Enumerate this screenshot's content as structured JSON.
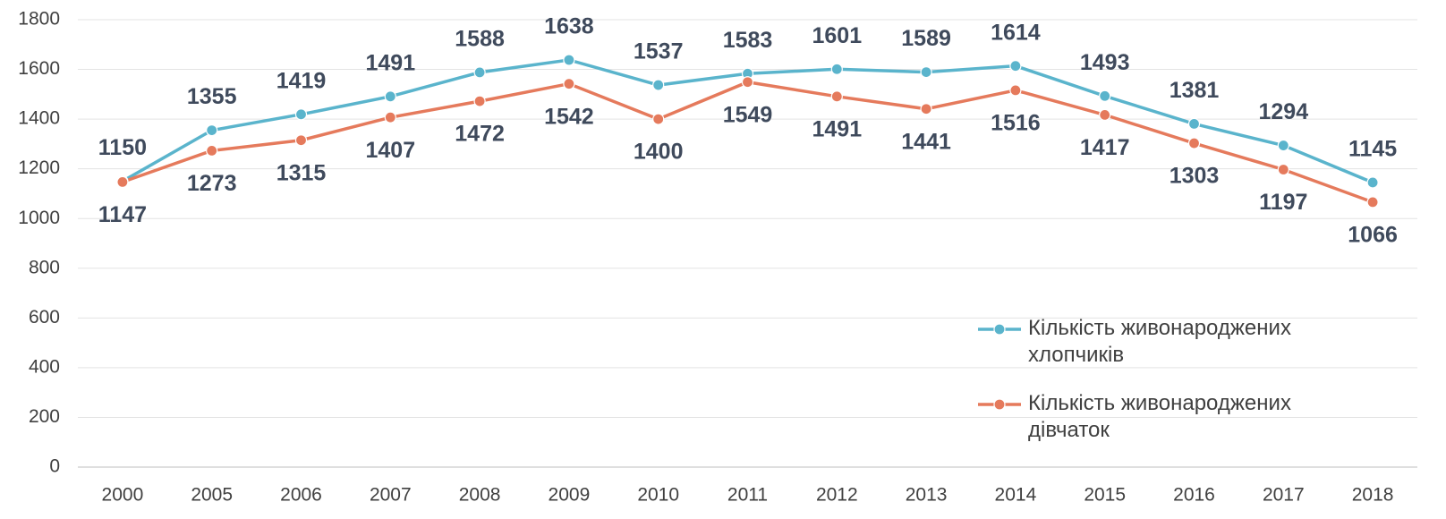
{
  "chart_data": {
    "type": "line",
    "categories": [
      "2000",
      "2005",
      "2006",
      "2007",
      "2008",
      "2009",
      "2010",
      "2011",
      "2012",
      "2013",
      "2014",
      "2015",
      "2016",
      "2017",
      "2018"
    ],
    "series": [
      {
        "name": "Кількість живонароджених хлопчиків",
        "color": "#5ab4cc",
        "values": [
          1150,
          1355,
          1419,
          1491,
          1588,
          1638,
          1537,
          1583,
          1601,
          1589,
          1614,
          1493,
          1381,
          1294,
          1145
        ]
      },
      {
        "name": "Кількість живонароджених дівчаток",
        "color": "#e57a5c",
        "values": [
          1147,
          1273,
          1315,
          1407,
          1472,
          1542,
          1400,
          1549,
          1491,
          1441,
          1516,
          1417,
          1303,
          1197,
          1066
        ]
      }
    ],
    "ylim": [
      0,
      1800
    ],
    "yticks": [
      0,
      200,
      400,
      600,
      800,
      1000,
      1200,
      1400,
      1600,
      1800
    ],
    "grid": true,
    "legend": "right"
  }
}
